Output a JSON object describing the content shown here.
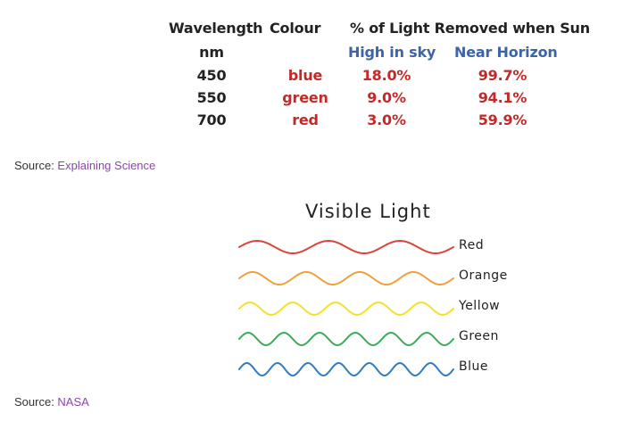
{
  "table": {
    "headers": {
      "wavelength": "Wavelength",
      "colour": "Colour",
      "removed": "% of Light Removed when Sun"
    },
    "subheaders": {
      "unit": "nm",
      "high": "High in sky",
      "near": "Near Horizon"
    },
    "rows": [
      {
        "wavelength": "450",
        "colour": "blue",
        "high": "18.0%",
        "near": "99.7%"
      },
      {
        "wavelength": "550",
        "colour": "green",
        "high": "9.0%",
        "near": "94.1%"
      },
      {
        "wavelength": "700",
        "colour": "red",
        "high": "3.0%",
        "near": "59.9%"
      }
    ]
  },
  "source1": {
    "prefix": "Source: ",
    "link": "Explaining Science"
  },
  "visible_light": {
    "title": "Visible Light",
    "waves": [
      {
        "label": "Red",
        "color": "#d9443a",
        "cycles": 3
      },
      {
        "label": "Orange",
        "color": "#f0a03c",
        "cycles": 4
      },
      {
        "label": "Yellow",
        "color": "#f2e32a",
        "cycles": 5
      },
      {
        "label": "Green",
        "color": "#3bab5a",
        "cycles": 6
      },
      {
        "label": "Blue",
        "color": "#2f7cc3",
        "cycles": 7
      }
    ]
  },
  "source2": {
    "prefix": "Source: ",
    "link": "NASA"
  }
}
